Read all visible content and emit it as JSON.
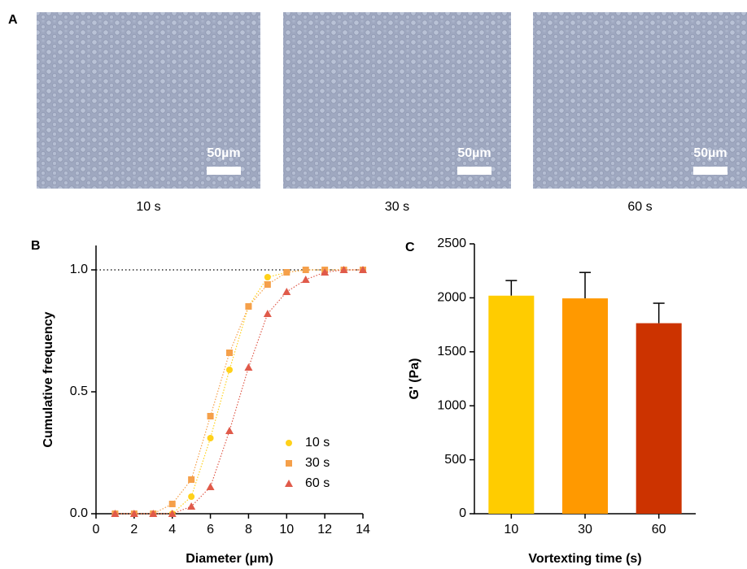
{
  "figure_a": {
    "label": "A",
    "images": [
      {
        "caption": "10 s",
        "scale_bar": "50µm"
      },
      {
        "caption": "30 s",
        "scale_bar": "50µm"
      },
      {
        "caption": "60 s",
        "scale_bar": "50µm"
      }
    ]
  },
  "chart_data": [
    {
      "type": "line",
      "panel_label": "B",
      "x_label": "Diameter (μm)",
      "y_label": "Cumulative frequency",
      "x": [
        1,
        2,
        3,
        4,
        5,
        6,
        7,
        8,
        9,
        10,
        11,
        12,
        13,
        14
      ],
      "series": [
        {
          "name": "10 s",
          "color": "#ffd11a",
          "marker": "circle",
          "values": [
            0,
            0,
            0,
            0,
            0.07,
            0.31,
            0.59,
            0.85,
            0.97,
            0.99,
            1,
            1,
            1,
            1
          ]
        },
        {
          "name": "30 s",
          "color": "#f5a04a",
          "marker": "square",
          "values": [
            0,
            0,
            0,
            0.04,
            0.14,
            0.4,
            0.66,
            0.85,
            0.94,
            0.99,
            1,
            1,
            1,
            1
          ]
        },
        {
          "name": "60 s",
          "color": "#e05a4a",
          "marker": "triangle",
          "values": [
            0,
            0,
            0,
            0,
            0.03,
            0.11,
            0.34,
            0.6,
            0.82,
            0.91,
            0.96,
            0.99,
            1,
            1
          ]
        }
      ],
      "xlim": [
        0,
        14
      ],
      "xticks": [
        0,
        2,
        4,
        6,
        8,
        10,
        12,
        14
      ],
      "ylim": [
        0,
        1.1
      ],
      "yticks": [
        {
          "value": 0,
          "label": "0.0"
        },
        0.5,
        {
          "value": 1,
          "label": "1.0"
        }
      ],
      "reference_line": 1,
      "legend": "lower-right"
    },
    {
      "type": "bar",
      "panel_label": "C",
      "x_label": "Vortexting time (s)",
      "y_label": "G' (Pa)",
      "categories": [
        "10",
        "30",
        "60"
      ],
      "values": [
        2020,
        1995,
        1765
      ],
      "errors": [
        140,
        240,
        185
      ],
      "colors": [
        "#ffcc00",
        "#ff9900",
        "#cc3300"
      ],
      "ylim": [
        0,
        2500
      ],
      "yticks": [
        0,
        500,
        1000,
        1500,
        2000,
        2500
      ]
    }
  ]
}
